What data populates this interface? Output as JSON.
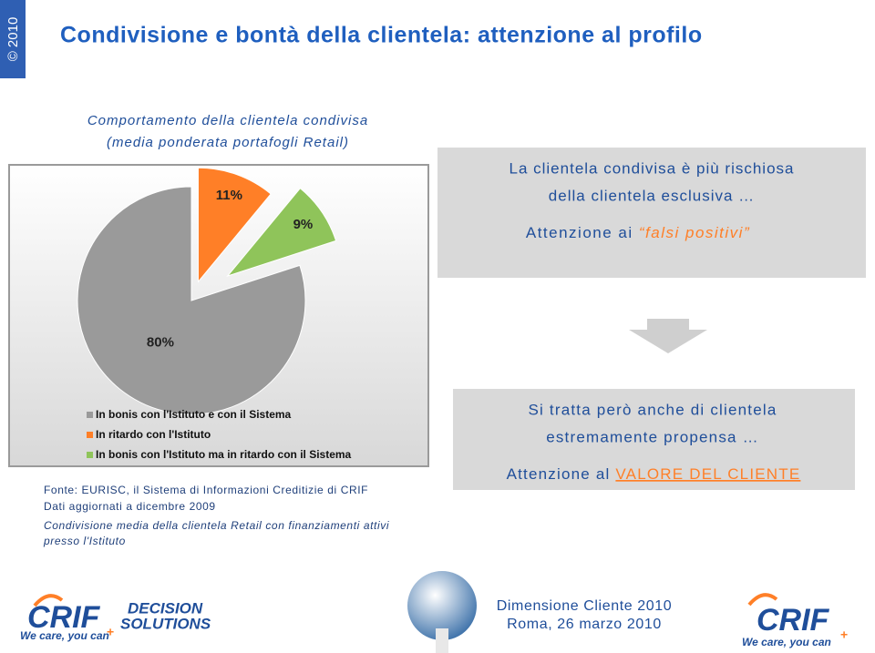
{
  "badge": "© 2010",
  "header": {
    "title": "Condivisione e bontà della clientela: attenzione al profilo"
  },
  "chart_data": {
    "type": "pie",
    "title": [
      "Comportamento della clientela condivisa",
      "(media ponderata portafogli Retail)"
    ],
    "categories": [
      "In bonis con l'Istituto e con il Sistema",
      "In ritardo con l'Istituto",
      "In bonis con l'Istituto ma in ritardo  con il Sistema"
    ],
    "values": [
      80,
      11,
      9
    ],
    "value_labels": [
      "80%",
      "11%",
      "9%"
    ],
    "colors": [
      "#9a9a9a",
      "#ff7f27",
      "#8fc45a"
    ],
    "legend": "bottom"
  },
  "notes": [
    "Fonte: EURISC, il Sistema di Informazioni Creditizie di CRIF",
    "Dati aggiornati a dicembre 2009",
    "Condivisione media della clientela Retail con finanziamenti attivi",
    "presso l'Istituto"
  ],
  "box1": {
    "lines": [
      "La clientela condivisa è più rischiosa",
      "della clientela esclusiva …"
    ],
    "prefix": "Attenzione ai ",
    "emphasis": "“falsi positivi”"
  },
  "box2": {
    "lines": [
      "Si tratta però anche di clientela",
      "estremamente propensa …"
    ],
    "prefix": "Attenzione al ",
    "emphasis": "VALORE DEL CLIENTE"
  },
  "footer": {
    "logo_left": "CRIF",
    "logo_left_sub": [
      "DECISION",
      "SOLUTIONS"
    ],
    "tagline": "We care, you can",
    "plus": "+",
    "event": "Dimensione Cliente 2010",
    "place_date": "Roma, 26 marzo 2010",
    "logo_right": "CRIF",
    "tagline_right": "We care, you can"
  }
}
